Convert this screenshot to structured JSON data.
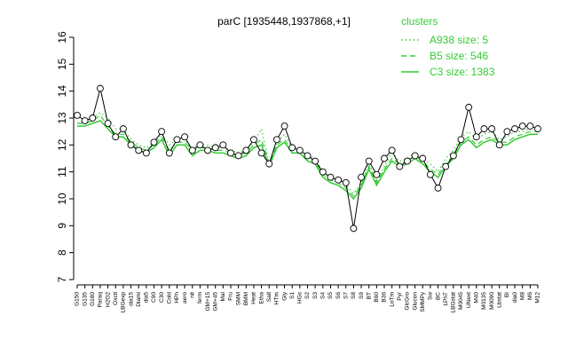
{
  "chart_data": {
    "type": "line",
    "title": "parC [1935448,1937868,+1]",
    "ylim": [
      7,
      16
    ],
    "yticks": [
      7,
      8,
      9,
      10,
      11,
      12,
      13,
      14,
      15,
      16
    ],
    "grid": false,
    "legend": {
      "title": "clusters",
      "placement": "top-right",
      "entries": [
        {
          "label": "A938 size: 5",
          "style": "dotted"
        },
        {
          "label": "B5 size: 546",
          "style": "dashed"
        },
        {
          "label": "C3 size: 1383",
          "style": "solid"
        }
      ]
    },
    "xtick_labels": [
      "G150",
      "G135",
      "G180",
      "Paraq",
      "H2O2",
      "Oxctl",
      "LBGexp",
      "dia15",
      "Diami",
      "dia5",
      "C90",
      "C30",
      "Cold",
      "HPh",
      "aero",
      "nit",
      "ferm",
      "GM+15",
      "GM+45",
      "Mal",
      "Fru",
      "SMM",
      "BMM",
      "Heat",
      "Etha",
      "Salt",
      "HTm",
      "Gly",
      "S1",
      "HGs",
      "S2",
      "S3",
      "S4",
      "S5",
      "S6",
      "S7",
      "S8",
      "S9",
      "BT",
      "B60",
      "B36",
      "LoTm",
      "Pyr",
      "GlcGro",
      "Glucon",
      "SMMPy",
      "Sw",
      "BC",
      "LPhT",
      "LBGstat",
      "M0045",
      "UNext",
      "M40",
      "M0135",
      "M0090",
      "Lbstat",
      "BI",
      "dia0",
      "M8",
      "M6",
      "M12"
    ],
    "clusters": [
      {
        "name": "A938 size: 5",
        "style": "dotted",
        "y": [
          12.8,
          12.9,
          13.0,
          13.2,
          13.0,
          12.6,
          12.6,
          12.2,
          12.0,
          11.9,
          12.1,
          12.4,
          12.0,
          12.2,
          12.2,
          11.9,
          12.0,
          12.0,
          11.9,
          11.9,
          11.8,
          11.7,
          11.8,
          12.1,
          12.6,
          11.3,
          12.1,
          12.4,
          11.9,
          11.9,
          11.6,
          11.5,
          11.0,
          10.8,
          10.7,
          10.5,
          10.2,
          10.6,
          11.3,
          10.7,
          11.2,
          11.7,
          11.4,
          11.5,
          11.7,
          11.5,
          11.3,
          11.0,
          11.5,
          11.8,
          12.3,
          12.5,
          12.2,
          12.4,
          12.5,
          12.2,
          12.3,
          12.5,
          12.5,
          12.6,
          12.6
        ]
      },
      {
        "name": "B5 size: 546",
        "style": "dashed",
        "y": [
          12.8,
          12.8,
          12.9,
          13.1,
          12.7,
          12.4,
          12.4,
          12.1,
          11.9,
          11.8,
          12.0,
          12.3,
          11.8,
          12.1,
          12.1,
          11.8,
          11.9,
          11.9,
          11.8,
          11.8,
          11.7,
          11.6,
          11.7,
          12.0,
          12.2,
          11.3,
          12.0,
          12.2,
          11.8,
          11.8,
          11.5,
          11.4,
          10.9,
          10.7,
          10.6,
          10.4,
          10.1,
          10.5,
          11.2,
          10.6,
          11.1,
          11.5,
          11.3,
          11.4,
          11.6,
          11.4,
          11.1,
          10.9,
          11.3,
          11.6,
          12.1,
          12.3,
          12.0,
          12.2,
          12.3,
          12.1,
          12.1,
          12.3,
          12.4,
          12.5,
          12.5
        ]
      },
      {
        "name": "C3 size: 1383",
        "style": "solid",
        "y": [
          12.7,
          12.7,
          12.8,
          12.9,
          12.6,
          12.3,
          12.3,
          12.0,
          11.8,
          11.7,
          11.9,
          12.2,
          11.6,
          12.0,
          12.0,
          11.6,
          11.8,
          11.8,
          11.7,
          11.7,
          11.6,
          11.5,
          11.6,
          11.9,
          12.0,
          11.2,
          11.9,
          12.1,
          11.7,
          11.7,
          11.4,
          11.3,
          10.8,
          10.6,
          10.5,
          10.3,
          10.0,
          10.4,
          11.1,
          10.5,
          11.0,
          11.4,
          11.2,
          11.3,
          11.5,
          11.3,
          11.0,
          10.8,
          11.2,
          11.5,
          12.0,
          12.2,
          11.9,
          12.1,
          12.2,
          12.0,
          12.0,
          12.2,
          12.3,
          12.4,
          12.4
        ]
      }
    ],
    "series": [
      {
        "name": "parC",
        "y": [
          13.1,
          12.9,
          13.0,
          14.1,
          12.8,
          12.3,
          12.6,
          12.0,
          11.8,
          11.7,
          12.1,
          12.5,
          11.7,
          12.2,
          12.3,
          11.8,
          12.0,
          11.8,
          11.9,
          12.0,
          11.7,
          11.6,
          11.8,
          12.2,
          11.7,
          11.3,
          12.2,
          12.7,
          11.9,
          11.8,
          11.6,
          11.4,
          11.0,
          10.8,
          10.7,
          10.6,
          8.9,
          10.8,
          11.4,
          10.9,
          11.5,
          11.8,
          11.2,
          11.4,
          11.6,
          11.5,
          10.9,
          10.4,
          11.2,
          11.6,
          12.2,
          13.4,
          12.3,
          12.6,
          12.6,
          12.0,
          12.5,
          12.6,
          12.7,
          12.7,
          12.6
        ]
      }
    ]
  }
}
